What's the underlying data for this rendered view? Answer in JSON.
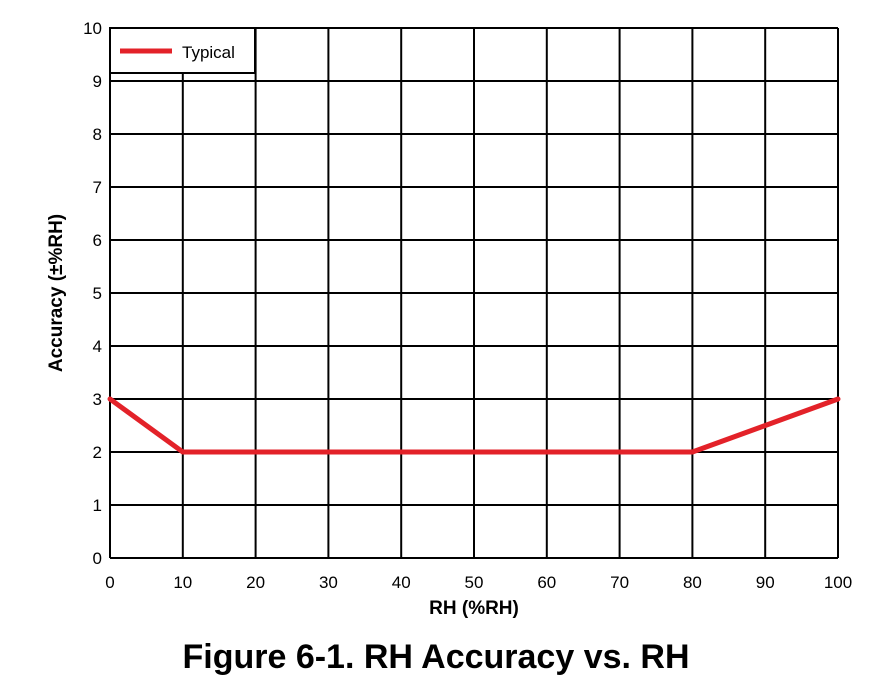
{
  "caption": "Figure 6-1. RH Accuracy vs. RH",
  "colors": {
    "series": "#e32229",
    "grid": "#000000",
    "background": "#ffffff"
  },
  "chart_data": {
    "type": "line",
    "xlabel": "RH (%RH)",
    "ylabel": "Accuracy (±%RH)",
    "xlim": [
      0,
      100
    ],
    "ylim": [
      0,
      10
    ],
    "xticks": [
      0,
      10,
      20,
      30,
      40,
      50,
      60,
      70,
      80,
      90,
      100
    ],
    "yticks": [
      0,
      1,
      2,
      3,
      4,
      5,
      6,
      7,
      8,
      9,
      10
    ],
    "grid": true,
    "legend": {
      "position": "top-left",
      "entries": [
        "Typical"
      ]
    },
    "series": [
      {
        "name": "Typical",
        "x": [
          0,
          10,
          80,
          100
        ],
        "y": [
          3,
          2,
          2,
          3
        ]
      }
    ]
  }
}
